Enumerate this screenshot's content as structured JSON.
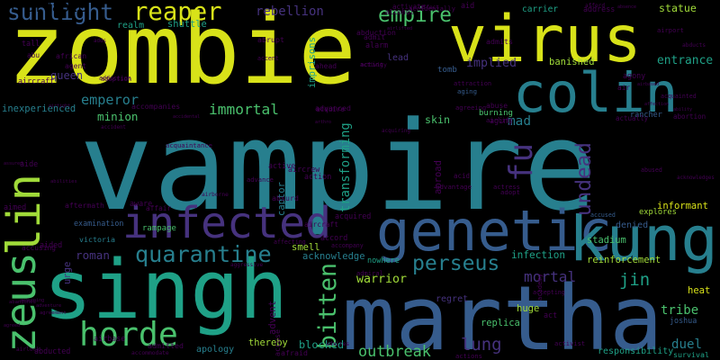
{
  "palette": {
    "yellow": "#d8e219",
    "lime": "#a0da39",
    "green": "#4ac16d",
    "teal": "#1fa187",
    "cyan": "#277f8e",
    "blue": "#365c8d",
    "indigo": "#46327e",
    "purple": "#440154"
  },
  "words": [
    {
      "text": "vampire",
      "color": "cyan"
    },
    {
      "text": "zombie",
      "color": "yellow"
    },
    {
      "text": "martha",
      "color": "blue"
    },
    {
      "text": "singh",
      "color": "teal"
    },
    {
      "text": "virus",
      "color": "yellow"
    },
    {
      "text": "colin",
      "color": "cyan"
    },
    {
      "text": "genetic",
      "color": "blue"
    },
    {
      "text": "kung",
      "color": "cyan"
    },
    {
      "text": "lin",
      "color": "lime"
    },
    {
      "text": "infected",
      "color": "indigo"
    },
    {
      "text": "zeus",
      "color": "green"
    },
    {
      "text": "horde",
      "color": "green"
    },
    {
      "text": "fu",
      "color": "indigo"
    },
    {
      "text": "quarantine",
      "color": "cyan"
    },
    {
      "text": "reaper",
      "color": "yellow"
    },
    {
      "text": "sunlight",
      "color": "blue"
    },
    {
      "text": "empire",
      "color": "green"
    },
    {
      "text": "perseus",
      "color": "cyan"
    },
    {
      "text": "emperor",
      "color": "cyan"
    },
    {
      "text": "bitten",
      "color": "green"
    },
    {
      "text": "immortal",
      "color": "green"
    },
    {
      "text": "undead",
      "color": "indigo"
    },
    {
      "text": "mortal",
      "color": "indigo"
    },
    {
      "text": "jin",
      "color": "teal"
    },
    {
      "text": "lung",
      "color": "indigo"
    },
    {
      "text": "outbreak",
      "color": "green"
    },
    {
      "text": "entrance",
      "color": "teal"
    },
    {
      "text": "statue",
      "color": "lime"
    },
    {
      "text": "warrior",
      "color": "lime"
    },
    {
      "text": "infection",
      "color": "teal"
    },
    {
      "text": "rebellion",
      "color": "indigo"
    },
    {
      "text": "queen",
      "color": "indigo"
    },
    {
      "text": "duel",
      "color": "cyan"
    },
    {
      "text": "transforming",
      "color": "teal"
    },
    {
      "text": "implied",
      "color": "indigo"
    },
    {
      "text": "skin",
      "color": "green"
    },
    {
      "text": "mad",
      "color": "cyan"
    },
    {
      "text": "roman",
      "color": "indigo"
    },
    {
      "text": "tribe",
      "color": "green"
    },
    {
      "text": "blocked",
      "color": "teal"
    },
    {
      "text": "replica",
      "color": "green"
    },
    {
      "text": "acknowledge",
      "color": "cyan"
    },
    {
      "text": "minion",
      "color": "green"
    },
    {
      "text": "rampage",
      "color": "green"
    },
    {
      "text": "stadium",
      "color": "green"
    },
    {
      "text": "informant",
      "color": "yellow"
    },
    {
      "text": "explores",
      "color": "lime"
    },
    {
      "text": "reinforcement",
      "color": "lime"
    },
    {
      "text": "heat",
      "color": "yellow"
    },
    {
      "text": "banished",
      "color": "lime"
    },
    {
      "text": "shuttle",
      "color": "teal"
    },
    {
      "text": "realm",
      "color": "teal"
    },
    {
      "text": "carrier",
      "color": "teal"
    },
    {
      "text": "burning",
      "color": "green"
    },
    {
      "text": "victoria",
      "color": "cyan"
    },
    {
      "text": "thereby",
      "color": "lime"
    },
    {
      "text": "apology",
      "color": "cyan"
    },
    {
      "text": "smell",
      "color": "lime"
    },
    {
      "text": "nowhere",
      "color": "teal"
    },
    {
      "text": "regret",
      "color": "indigo"
    },
    {
      "text": "huge",
      "color": "lime"
    },
    {
      "text": "responsibility",
      "color": "teal"
    },
    {
      "text": "survival",
      "color": "teal"
    },
    {
      "text": "urge",
      "color": "indigo"
    },
    {
      "text": "lead",
      "color": "indigo"
    },
    {
      "text": "inexperienced",
      "color": "cyan"
    },
    {
      "text": "imprisons",
      "color": "teal"
    },
    {
      "text": "captor",
      "color": "cyan"
    },
    {
      "text": "denied",
      "color": "blue"
    },
    {
      "text": "rancher",
      "color": "blue"
    },
    {
      "text": "tomb",
      "color": "blue"
    },
    {
      "text": "aging",
      "color": "blue"
    },
    {
      "text": "examination",
      "color": "blue"
    },
    {
      "text": "joshua",
      "color": "blue"
    },
    {
      "text": "accused",
      "color": "blue"
    },
    {
      "text": "activist",
      "color": "purple"
    },
    {
      "text": "adopt",
      "color": "purple"
    },
    {
      "text": "afford",
      "color": "purple"
    },
    {
      "text": "admitted",
      "color": "purple"
    },
    {
      "text": "abducted",
      "color": "purple"
    },
    {
      "text": "aftermath",
      "color": "purple"
    },
    {
      "text": "accepting",
      "color": "purple"
    },
    {
      "text": "abortion",
      "color": "purple"
    },
    {
      "text": "adoption",
      "color": "purple"
    },
    {
      "text": "accidentally",
      "color": "purple"
    },
    {
      "text": "advanced",
      "color": "purple"
    },
    {
      "text": "activate",
      "color": "purple"
    },
    {
      "text": "african",
      "color": "purple"
    },
    {
      "text": "agent",
      "color": "purple"
    },
    {
      "text": "adds",
      "color": "purple"
    },
    {
      "text": "abu",
      "color": "purple"
    },
    {
      "text": "address",
      "color": "purple"
    },
    {
      "text": "abduction",
      "color": "purple"
    },
    {
      "text": "accent",
      "color": "purple"
    },
    {
      "text": "adventure",
      "color": "purple"
    },
    {
      "text": "alarm",
      "color": "purple"
    },
    {
      "text": "aircraft",
      "color": "purple"
    },
    {
      "text": "activity",
      "color": "purple"
    },
    {
      "text": "addiction",
      "color": "purple"
    },
    {
      "text": "actually",
      "color": "purple"
    },
    {
      "text": "accusing",
      "color": "purple"
    },
    {
      "text": "advantage",
      "color": "purple"
    },
    {
      "text": "affair",
      "color": "purple"
    },
    {
      "text": "acquire",
      "color": "purple"
    },
    {
      "text": "ahead",
      "color": "purple"
    },
    {
      "text": "acid",
      "color": "purple"
    },
    {
      "text": "abilities",
      "color": "purple"
    },
    {
      "text": "abuse",
      "color": "purple"
    },
    {
      "text": "air",
      "color": "purple"
    },
    {
      "text": "act",
      "color": "purple"
    },
    {
      "text": "affect",
      "color": "purple"
    },
    {
      "text": "attraction",
      "color": "purple"
    },
    {
      "text": "acquainted",
      "color": "purple"
    },
    {
      "text": "alcohol",
      "color": "purple"
    },
    {
      "text": "airbased",
      "color": "purple"
    },
    {
      "text": "aid",
      "color": "purple"
    },
    {
      "text": "absence",
      "color": "purple"
    },
    {
      "text": "tall",
      "color": "purple"
    },
    {
      "text": "admit",
      "color": "purple"
    },
    {
      "text": "admits",
      "color": "purple"
    },
    {
      "text": "abducts",
      "color": "purple"
    },
    {
      "text": "acting",
      "color": "purple"
    },
    {
      "text": "active",
      "color": "purple"
    },
    {
      "text": "advance",
      "color": "purple"
    },
    {
      "text": "accident",
      "color": "purple"
    },
    {
      "text": "action",
      "color": "purple"
    },
    {
      "text": "accidental",
      "color": "purple"
    },
    {
      "text": "aide",
      "color": "purple"
    },
    {
      "text": "ability",
      "color": "purple"
    },
    {
      "text": "airtight",
      "color": "purple"
    },
    {
      "text": "abrupt",
      "color": "purple"
    },
    {
      "text": "aging",
      "color": "purple"
    },
    {
      "text": "abused",
      "color": "purple"
    },
    {
      "text": "agreeing",
      "color": "purple"
    },
    {
      "text": "airport",
      "color": "purple"
    },
    {
      "text": "affecting",
      "color": "purple"
    },
    {
      "text": "afraid",
      "color": "purple"
    },
    {
      "text": "arthro",
      "color": "purple"
    },
    {
      "text": "accord",
      "color": "purple"
    },
    {
      "text": "awakening",
      "color": "purple"
    },
    {
      "text": "agreement",
      "color": "purple"
    },
    {
      "text": "aggressive",
      "color": "purple"
    },
    {
      "text": "airborne",
      "color": "purple"
    },
    {
      "text": "agreed",
      "color": "purple"
    },
    {
      "text": "accommodate",
      "color": "purple"
    },
    {
      "text": "accompanies",
      "color": "purple"
    },
    {
      "text": "acquaintance",
      "color": "purple"
    },
    {
      "text": "aware",
      "color": "purple"
    },
    {
      "text": "airlock",
      "color": "purple"
    },
    {
      "text": "advent",
      "color": "purple"
    },
    {
      "text": "airlift",
      "color": "purple"
    },
    {
      "text": "affection",
      "color": "purple"
    },
    {
      "text": "airlifted",
      "color": "purple"
    },
    {
      "text": "absurd",
      "color": "purple"
    },
    {
      "text": "assured",
      "color": "purple"
    },
    {
      "text": "accuse",
      "color": "purple"
    },
    {
      "text": "admiral",
      "color": "purple"
    },
    {
      "text": "actions",
      "color": "purple"
    },
    {
      "text": "accompany",
      "color": "purple"
    },
    {
      "text": "abroad",
      "color": "purple"
    },
    {
      "text": "aircrew",
      "color": "purple"
    },
    {
      "text": "aided",
      "color": "purple"
    },
    {
      "text": "abandoned",
      "color": "purple"
    },
    {
      "text": "acknowledges",
      "color": "purple"
    },
    {
      "text": "actress",
      "color": "purple"
    },
    {
      "text": "admires",
      "color": "purple"
    },
    {
      "text": "acquired",
      "color": "purple"
    },
    {
      "text": "airbase",
      "color": "purple"
    },
    {
      "text": "aimed",
      "color": "purple"
    },
    {
      "text": "acquiring",
      "color": "purple"
    },
    {
      "text": "academy",
      "color": "purple"
    },
    {
      "text": "aircraft",
      "color": "purple"
    },
    {
      "text": "agony",
      "color": "purple"
    },
    {
      "text": "affordable",
      "color": "purple"
    }
  ]
}
